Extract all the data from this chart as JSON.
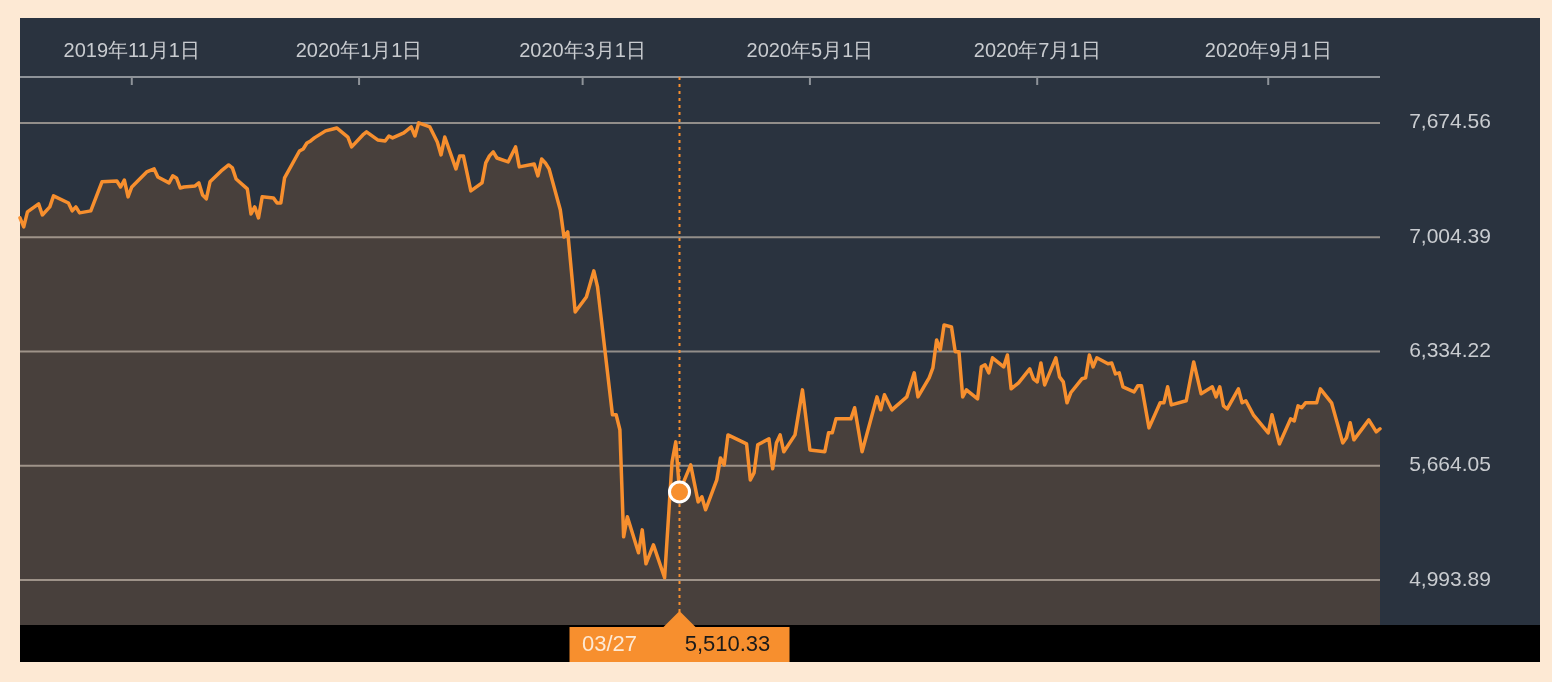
{
  "chart_data": {
    "type": "area",
    "grid": "y",
    "xlim": [
      "2019-10-02",
      "2020-10-01"
    ],
    "ylim": [
      4730,
      7944
    ],
    "xticks": [
      {
        "value": "2019-11-01",
        "label": "2019年11月1日"
      },
      {
        "value": "2020-01-01",
        "label": "2020年1月1日"
      },
      {
        "value": "2020-03-01",
        "label": "2020年3月1日"
      },
      {
        "value": "2020-05-01",
        "label": "2020年5月1日"
      },
      {
        "value": "2020-07-01",
        "label": "2020年7月1日"
      },
      {
        "value": "2020-09-01",
        "label": "2020年9月1日"
      }
    ],
    "yticks": [
      {
        "value": 4993.89,
        "label": "4,993.89"
      },
      {
        "value": 5664.05,
        "label": "5,664.05"
      },
      {
        "value": 6334.22,
        "label": "6,334.22"
      },
      {
        "value": 7004.39,
        "label": "7,004.39"
      },
      {
        "value": 7674.56,
        "label": "7,674.56"
      }
    ],
    "x": [
      "2019-10-02",
      "2019-10-03",
      "2019-10-04",
      "2019-10-07",
      "2019-10-08",
      "2019-10-10",
      "2019-10-11",
      "2019-10-15",
      "2019-10-16",
      "2019-10-17",
      "2019-10-18",
      "2019-10-21",
      "2019-10-24",
      "2019-10-28",
      "2019-10-29",
      "2019-10-30",
      "2019-10-31",
      "2019-11-01",
      "2019-11-05",
      "2019-11-07",
      "2019-11-08",
      "2019-11-11",
      "2019-11-12",
      "2019-11-13",
      "2019-11-14",
      "2019-11-15",
      "2019-11-18",
      "2019-11-19",
      "2019-11-20",
      "2019-11-21",
      "2019-11-22",
      "2019-11-25",
      "2019-11-27",
      "2019-11-28",
      "2019-11-29",
      "2019-12-02",
      "2019-12-03",
      "2019-12-04",
      "2019-12-05",
      "2019-12-06",
      "2019-12-09",
      "2019-12-10",
      "2019-12-11",
      "2019-12-12",
      "2019-12-16",
      "2019-12-17",
      "2019-12-18",
      "2019-12-19",
      "2019-12-20",
      "2019-12-23",
      "2019-12-25",
      "2019-12-26",
      "2019-12-29",
      "2019-12-30",
      "2020-01-02",
      "2020-01-03",
      "2020-01-06",
      "2020-01-08",
      "2020-01-09",
      "2020-01-10",
      "2020-01-13",
      "2020-01-15",
      "2020-01-16",
      "2020-01-17",
      "2020-01-20",
      "2020-01-22",
      "2020-01-23",
      "2020-01-24",
      "2020-01-27",
      "2020-01-28",
      "2020-01-29",
      "2020-01-31",
      "2020-02-03",
      "2020-02-04",
      "2020-02-05",
      "2020-02-06",
      "2020-02-07",
      "2020-02-10",
      "2020-02-12",
      "2020-02-13",
      "2020-02-17",
      "2020-02-18",
      "2020-02-19",
      "2020-02-20",
      "2020-02-21",
      "2020-02-24",
      "2020-02-25",
      "2020-02-26",
      "2020-02-28",
      "2020-03-02",
      "2020-03-04",
      "2020-03-05",
      "2020-03-09",
      "2020-03-10",
      "2020-03-11",
      "2020-03-12",
      "2020-03-13",
      "2020-03-16",
      "2020-03-17",
      "2020-03-18",
      "2020-03-20",
      "2020-03-23",
      "2020-03-25",
      "2020-03-26",
      "2020-03-27",
      "2020-03-30",
      "2020-04-01",
      "2020-04-02",
      "2020-04-03",
      "2020-04-06",
      "2020-04-07",
      "2020-04-08",
      "2020-04-09",
      "2020-04-14",
      "2020-04-15",
      "2020-04-16",
      "2020-04-17",
      "2020-04-20",
      "2020-04-21",
      "2020-04-22",
      "2020-04-23",
      "2020-04-24",
      "2020-04-27",
      "2020-04-29",
      "2020-05-01",
      "2020-05-05",
      "2020-05-06",
      "2020-05-07",
      "2020-05-08",
      "2020-05-12",
      "2020-05-13",
      "2020-05-15",
      "2020-05-19",
      "2020-05-20",
      "2020-05-21",
      "2020-05-23",
      "2020-05-27",
      "2020-05-29",
      "2020-05-30",
      "2020-06-02",
      "2020-06-03",
      "2020-06-04",
      "2020-06-05",
      "2020-06-06",
      "2020-06-08",
      "2020-06-09",
      "2020-06-10",
      "2020-06-11",
      "2020-06-12",
      "2020-06-15",
      "2020-06-16",
      "2020-06-17",
      "2020-06-18",
      "2020-06-19",
      "2020-06-22",
      "2020-06-23",
      "2020-06-24",
      "2020-06-26",
      "2020-06-29",
      "2020-06-30",
      "2020-07-01",
      "2020-07-02",
      "2020-07-03",
      "2020-07-06",
      "2020-07-07",
      "2020-07-08",
      "2020-07-09",
      "2020-07-10",
      "2020-07-13",
      "2020-07-14",
      "2020-07-15",
      "2020-07-16",
      "2020-07-17",
      "2020-07-20",
      "2020-07-21",
      "2020-07-22",
      "2020-07-23",
      "2020-07-24",
      "2020-07-27",
      "2020-07-28",
      "2020-07-29",
      "2020-07-31",
      "2020-08-03",
      "2020-08-04",
      "2020-08-05",
      "2020-08-06",
      "2020-08-10",
      "2020-08-12",
      "2020-08-14",
      "2020-08-17",
      "2020-08-18",
      "2020-08-19",
      "2020-08-20",
      "2020-08-21",
      "2020-08-24",
      "2020-08-25",
      "2020-08-26",
      "2020-08-28",
      "2020-09-01",
      "2020-09-02",
      "2020-09-04",
      "2020-09-07",
      "2020-09-08",
      "2020-09-09",
      "2020-09-10",
      "2020-09-11",
      "2020-09-14",
      "2020-09-15",
      "2020-09-18",
      "2020-09-21",
      "2020-09-22",
      "2020-09-23",
      "2020-09-24",
      "2020-09-28",
      "2020-09-30",
      "2020-10-01"
    ],
    "series": [
      {
        "color": "#f78f2e",
        "values": [
          7118,
          7065,
          7153,
          7200,
          7135,
          7182,
          7247,
          7205,
          7159,
          7182,
          7147,
          7159,
          7329,
          7334,
          7299,
          7340,
          7241,
          7299,
          7387,
          7405,
          7358,
          7323,
          7364,
          7352,
          7293,
          7299,
          7305,
          7323,
          7252,
          7229,
          7329,
          7393,
          7428,
          7411,
          7346,
          7288,
          7141,
          7182,
          7118,
          7241,
          7235,
          7205,
          7205,
          7352,
          7510,
          7522,
          7557,
          7569,
          7587,
          7628,
          7639,
          7645,
          7592,
          7534,
          7604,
          7622,
          7575,
          7569,
          7598,
          7587,
          7616,
          7651,
          7598,
          7675,
          7651,
          7563,
          7487,
          7592,
          7405,
          7481,
          7481,
          7276,
          7323,
          7440,
          7481,
          7505,
          7469,
          7446,
          7534,
          7417,
          7434,
          7364,
          7463,
          7440,
          7405,
          7165,
          7006,
          7036,
          6566,
          6654,
          6807,
          6713,
          5963,
          5963,
          5875,
          5247,
          5365,
          5154,
          5288,
          5089,
          5200,
          5007,
          5687,
          5804,
          5510.33,
          5669,
          5452,
          5482,
          5406,
          5581,
          5710,
          5669,
          5845,
          5792,
          5581,
          5622,
          5787,
          5822,
          5646,
          5798,
          5845,
          5746,
          5845,
          6109,
          5757,
          5746,
          5857,
          5857,
          5939,
          5939,
          6004,
          5746,
          6068,
          5992,
          6080,
          5992,
          6068,
          6209,
          6068,
          6180,
          6238,
          6402,
          6344,
          6490,
          6478,
          6332,
          6332,
          6068,
          6109,
          6056,
          6244,
          6256,
          6209,
          6297,
          6244,
          6314,
          6115,
          6150,
          6232,
          6174,
          6156,
          6267,
          6138,
          6297,
          6185,
          6156,
          6033,
          6092,
          6174,
          6180,
          6314,
          6244,
          6297,
          6262,
          6267,
          6203,
          6209,
          6127,
          6097,
          6133,
          6133,
          5886,
          6033,
          6033,
          6127,
          6021,
          6045,
          6273,
          6086,
          6127,
          6068,
          6127,
          6015,
          5998,
          6115,
          6033,
          6045,
          5963,
          5857,
          5963,
          5792,
          5939,
          5927,
          6015,
          6004,
          6033,
          6033,
          6115,
          6033,
          5798,
          5828,
          5916,
          5816,
          5933,
          5863,
          5881
        ]
      }
    ],
    "ref_lines": [
      {
        "axis": "x",
        "value": "2020-03-27",
        "label": "03/27",
        "color": "#f78f2e",
        "line_style": "dotted"
      }
    ],
    "annotations": [
      "5,510.33"
    ]
  }
}
